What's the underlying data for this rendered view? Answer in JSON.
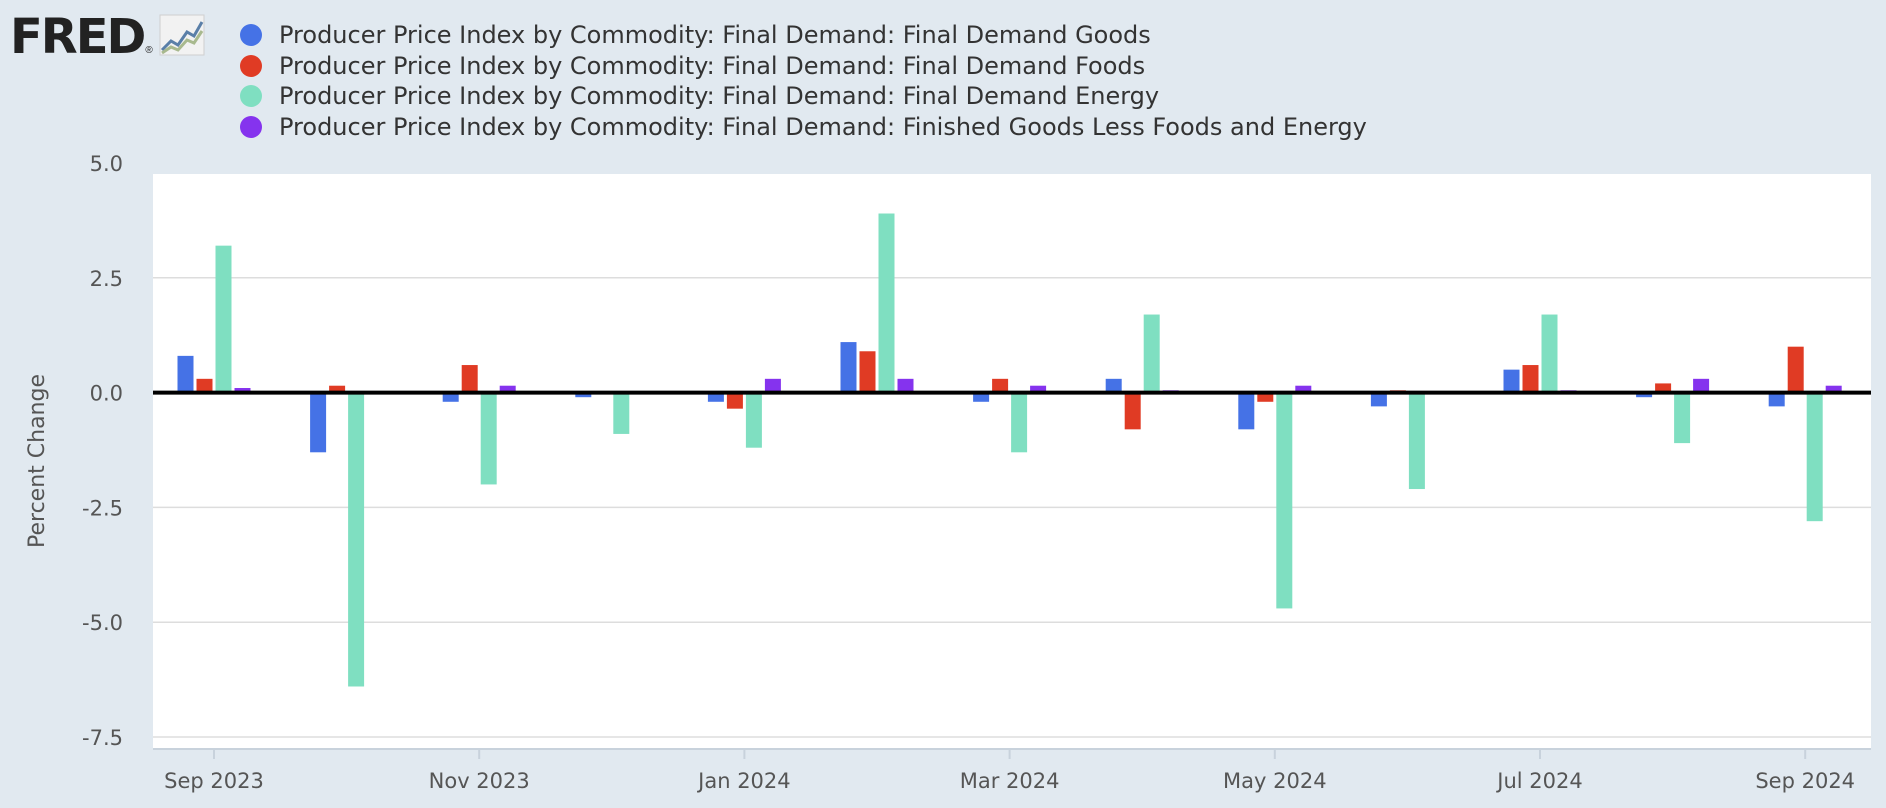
{
  "header": {
    "logo_text": "FRED",
    "logo_registered": "®"
  },
  "icons": {
    "logo_chart": "line-chart-icon"
  },
  "colors": {
    "background": "#e1e9f0",
    "plot_background": "#ffffff",
    "grid": "#dddddd",
    "zero_line": "#000000"
  },
  "chart_data": {
    "type": "bar",
    "ylabel": "Percent Change",
    "ylim": [
      -7.5,
      5.0
    ],
    "yticks": [
      "5.0",
      "2.5",
      "0.0",
      "-2.5",
      "-5.0",
      "-7.5"
    ],
    "ytick_values": [
      5.0,
      2.5,
      0.0,
      -2.5,
      -5.0,
      -7.5
    ],
    "grid": true,
    "legend_position": "top",
    "categories": [
      "Sep 2023",
      "Oct 2023",
      "Nov 2023",
      "Dec 2023",
      "Jan 2024",
      "Feb 2024",
      "Mar 2024",
      "Apr 2024",
      "May 2024",
      "Jun 2024",
      "Jul 2024",
      "Aug 2024",
      "Sep 2024"
    ],
    "xtick_labels": [
      "Sep 2023",
      "Nov 2023",
      "Jan 2024",
      "Mar 2024",
      "May 2024",
      "Jul 2024",
      "Sep 2024"
    ],
    "xtick_indices": [
      0,
      2,
      4,
      6,
      8,
      10,
      12
    ],
    "series": [
      {
        "name": "Producer Price Index by Commodity: Final Demand: Final Demand Goods",
        "color": "#4572e6",
        "values": [
          0.8,
          -1.3,
          -0.2,
          -0.1,
          -0.2,
          1.1,
          -0.2,
          0.3,
          -0.8,
          -0.3,
          0.5,
          -0.1,
          -0.3
        ]
      },
      {
        "name": "Producer Price Index by Commodity: Final Demand: Final Demand Foods",
        "color": "#e03b24",
        "values": [
          0.3,
          0.15,
          0.6,
          0.0,
          -0.35,
          0.9,
          0.3,
          -0.8,
          -0.2,
          0.05,
          0.6,
          0.2,
          1.0
        ]
      },
      {
        "name": "Producer Price Index by Commodity: Final Demand: Final Demand Energy",
        "color": "#7fdfc1",
        "values": [
          3.2,
          -6.4,
          -2.0,
          -0.9,
          -1.2,
          3.9,
          -1.3,
          1.7,
          -4.7,
          -2.1,
          1.7,
          -1.1,
          -2.8
        ]
      },
      {
        "name": "Producer Price Index by Commodity: Final Demand: Finished Goods Less Foods and Energy",
        "color": "#8533ee",
        "values": [
          0.1,
          0.0,
          0.15,
          0.0,
          0.3,
          0.3,
          0.15,
          0.05,
          0.15,
          0.0,
          0.05,
          0.3,
          0.15
        ]
      }
    ]
  }
}
